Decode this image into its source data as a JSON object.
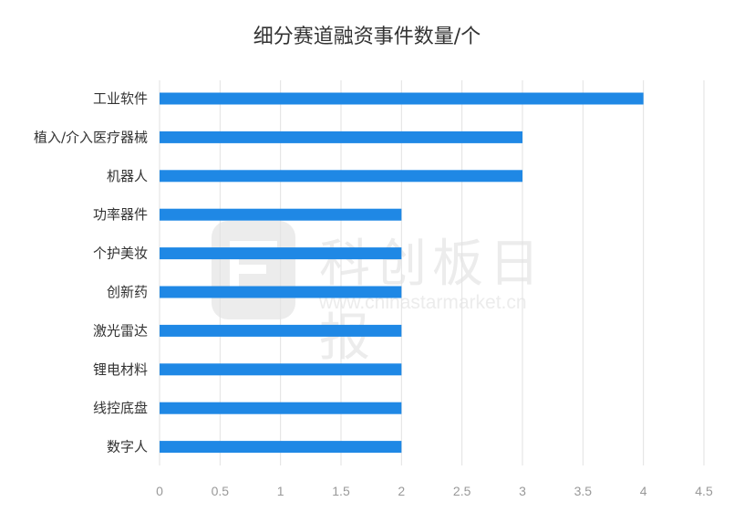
{
  "chart_data": {
    "type": "bar",
    "orientation": "horizontal",
    "title": "细分赛道融资事件数量/个",
    "categories": [
      "工业软件",
      "植入/介入医疗器械",
      "机器人",
      "功率器件",
      "个护美妆",
      "创新药",
      "激光雷达",
      "锂电材料",
      "线控底盘",
      "数字人"
    ],
    "values": [
      4,
      3,
      3,
      2,
      2,
      2,
      2,
      2,
      2,
      2
    ],
    "xlim": [
      0,
      4.5
    ],
    "xticks": [
      "0",
      "0.5",
      "1",
      "1.5",
      "2",
      "2.5",
      "3",
      "3.5",
      "4",
      "4.5"
    ],
    "grid": "vertical",
    "bar_color": "#1f88e5"
  },
  "watermark": {
    "name": "科创板日报",
    "url": "www.chinastarmarket.cn"
  }
}
